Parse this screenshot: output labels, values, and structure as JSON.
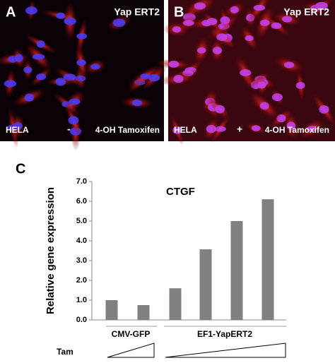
{
  "panels": [
    {
      "letter": "A",
      "construct": "Yap ERT2",
      "cell": "HELA",
      "sign": "-",
      "treatment": "4-OH  Tamoxifen"
    },
    {
      "letter": "B",
      "construct": "Yap ERT2",
      "cell": "HELA",
      "sign": "+",
      "treatment": "4-OH  Tamoxifen"
    }
  ],
  "chart_data": {
    "type": "bar",
    "panel_letter": "C",
    "title": "CTGF",
    "y_label": "Relative  gene expression",
    "categories": [
      null,
      null,
      null,
      null,
      null,
      null
    ],
    "values": [
      1.0,
      0.75,
      1.6,
      3.57,
      5.0,
      6.1
    ],
    "color": "#808080",
    "groups": [
      "CMV-GFP",
      "EF1-YapERT2"
    ],
    "treatment_label": "Tam",
    "ylim": [
      0,
      7
    ],
    "yticks": [
      {
        "value": 0,
        "label": "0.0"
      },
      {
        "value": 1,
        "label": "1.0"
      },
      {
        "value": 2,
        "label": "2.0"
      },
      {
        "value": 3,
        "label": "3.0"
      },
      {
        "value": 4,
        "label": "4.0"
      },
      {
        "value": 5,
        "label": "5.0"
      },
      {
        "value": 6,
        "label": "6.0"
      },
      {
        "value": 7,
        "label": "7.0"
      }
    ]
  }
}
